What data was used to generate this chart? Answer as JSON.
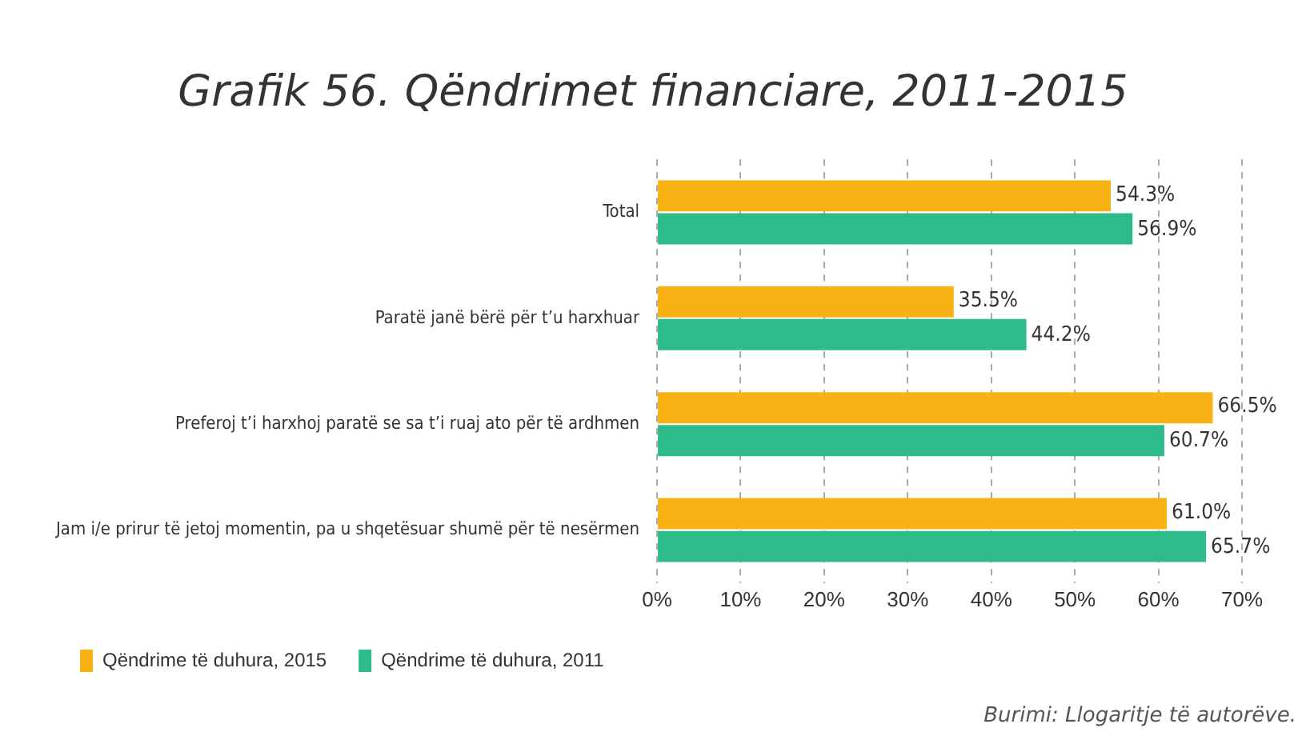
{
  "chart_data": {
    "type": "bar",
    "orientation": "horizontal",
    "title": "Grafik 56. Qëndrimet financiare, 2011-2015",
    "categories": [
      "Total",
      "Paratë janë bërë për t’u harxhuar",
      "Preferoj t’i harxhoj paratë se sa t’i ruaj ato për të ardhmen",
      "Jam i/e prirur të jetoj momentin, pa u shqetësuar shumë për të nesërmen"
    ],
    "series": [
      {
        "name": "Qëndrime të duhura, 2015",
        "color": "#f9b214",
        "values": [
          54.3,
          35.5,
          66.5,
          61.0
        ],
        "value_labels": [
          "54.3%",
          "35.5%",
          "66.5%",
          "61.0%"
        ]
      },
      {
        "name": "Qëndrime të duhura, 2011",
        "color": "#2dbb8a",
        "values": [
          56.9,
          44.2,
          60.7,
          65.7
        ],
        "value_labels": [
          "56.9%",
          "44.2%",
          "60.7%",
          "65.7%"
        ]
      }
    ],
    "xlim": [
      0,
      70
    ],
    "xticks": [
      {
        "value": 0,
        "label": "0%"
      },
      {
        "value": 10,
        "label": "10%"
      },
      {
        "value": 20,
        "label": "20%"
      },
      {
        "value": 30,
        "label": "30%"
      },
      {
        "value": 40,
        "label": "40%"
      },
      {
        "value": 50,
        "label": "50%"
      },
      {
        "value": 60,
        "label": "60%"
      },
      {
        "value": 70,
        "label": "70%"
      }
    ],
    "grid": "x",
    "legend": "bottom",
    "annotations": [
      "Burimi: Llogaritje të autorëve."
    ]
  }
}
